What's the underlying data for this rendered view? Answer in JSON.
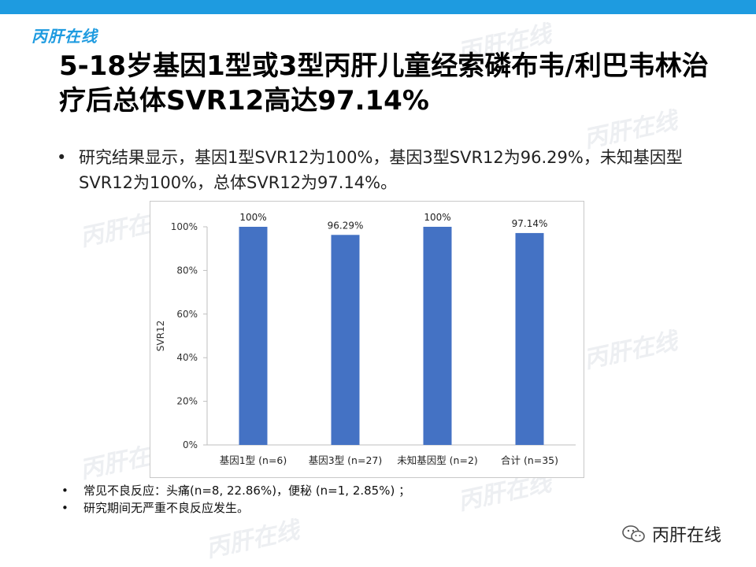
{
  "brand": {
    "logo_text": "丙肝在线",
    "wechat_label": "丙肝在线"
  },
  "title": "5-18岁基因1型或3型丙肝儿童经索磷布韦/利巴韦林治疗后总体SVR12高达97.14%",
  "bullet": "研究结果显示，基因1型SVR12为100%，基因3型SVR12为96.29%，未知基因型SVR12为100%，总体SVR12为97.14%。",
  "notes": [
    "常见不良反应：头痛(n=8, 22.86%)，便秘 (n=1, 2.85%) ；",
    "研究期间无严重不良反应发生。"
  ],
  "colors": {
    "bar": "#4472c4",
    "accent": "#1e9be0"
  },
  "chart_data": {
    "type": "bar",
    "categories": [
      "基因1型 (n=6)",
      "基因3型 (n=27)",
      "未知基因型 (n=2)",
      "合计 (n=35)"
    ],
    "values": [
      100,
      96.29,
      100,
      97.14
    ],
    "data_labels": [
      "100%",
      "96.29%",
      "100%",
      "97.14%"
    ],
    "ylabel": "SVR12",
    "ylim": [
      0,
      100
    ],
    "yticks": [
      "0%",
      "20%",
      "40%",
      "60%",
      "80%",
      "100%"
    ],
    "grid": false
  }
}
